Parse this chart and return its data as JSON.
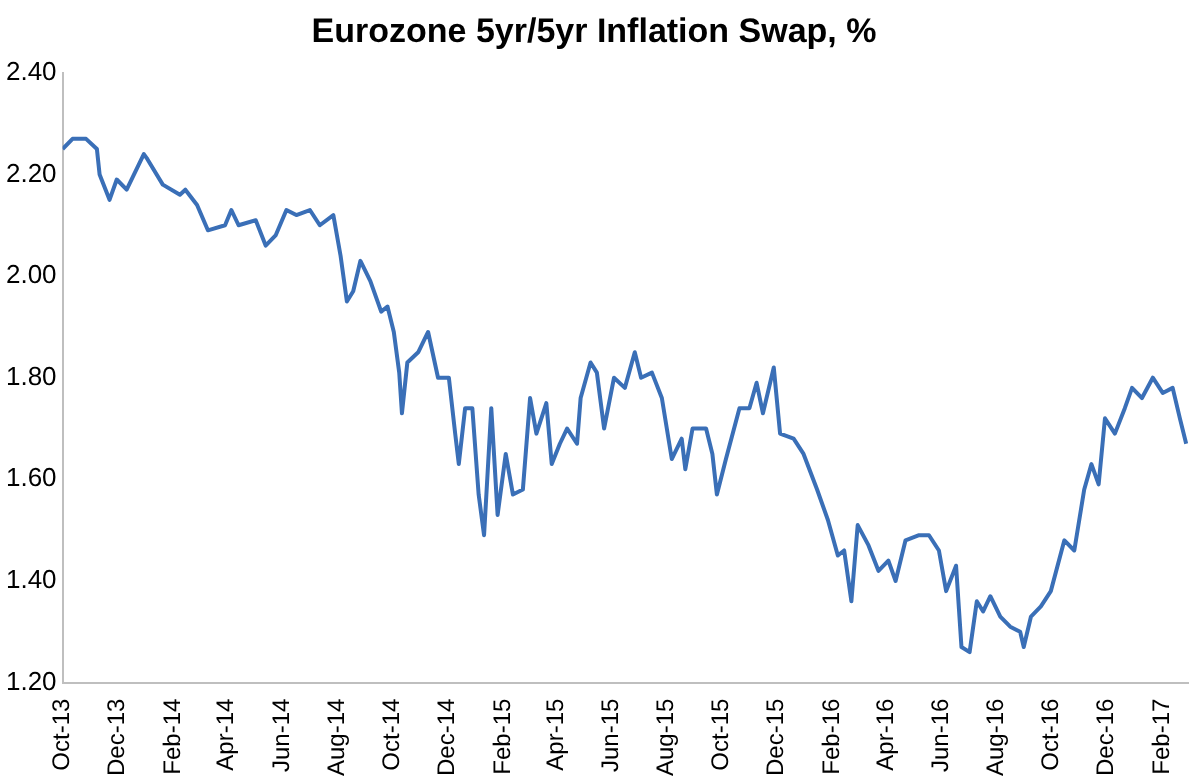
{
  "chart_data": {
    "type": "line",
    "title": "Eurozone 5yr/5yr Inflation Swap, %",
    "x": [
      "2013-10-01",
      "2013-10-12",
      "2013-10-27",
      "2013-11-08",
      "2013-11-11",
      "2013-11-22",
      "2013-11-30",
      "2013-12-11",
      "2013-12-30",
      "2014-01-03",
      "2014-01-20",
      "2014-02-08",
      "2014-02-14",
      "2014-02-27",
      "2014-03-11",
      "2014-03-30",
      "2014-04-06",
      "2014-04-14",
      "2014-05-03",
      "2014-05-14",
      "2014-05-25",
      "2014-06-06",
      "2014-06-17",
      "2014-07-02",
      "2014-07-13",
      "2014-07-28",
      "2014-08-05",
      "2014-08-12",
      "2014-08-19",
      "2014-08-27",
      "2014-09-07",
      "2014-09-19",
      "2014-09-26",
      "2014-10-03",
      "2014-10-09",
      "2014-10-12",
      "2014-10-18",
      "2014-10-30",
      "2014-11-10",
      "2014-11-21",
      "2014-12-03",
      "2014-12-10",
      "2014-12-14",
      "2014-12-21",
      "2014-12-29",
      "2015-01-05",
      "2015-01-11",
      "2015-01-19",
      "2015-01-26",
      "2015-02-04",
      "2015-02-12",
      "2015-02-23",
      "2015-03-03",
      "2015-03-10",
      "2015-03-21",
      "2015-03-27",
      "2015-04-05",
      "2015-04-13",
      "2015-04-24",
      "2015-04-28",
      "2015-05-09",
      "2015-05-16",
      "2015-05-24",
      "2015-06-04",
      "2015-06-16",
      "2015-06-27",
      "2015-07-04",
      "2015-07-16",
      "2015-07-27",
      "2015-08-07",
      "2015-08-18",
      "2015-08-22",
      "2015-08-30",
      "2015-09-14",
      "2015-09-21",
      "2015-09-26",
      "2015-10-06",
      "2015-10-21",
      "2015-11-01",
      "2015-11-09",
      "2015-11-16",
      "2015-11-28",
      "2015-12-05",
      "2015-12-20",
      "2015-12-31",
      "2016-01-15",
      "2016-01-27",
      "2016-02-07",
      "2016-02-14",
      "2016-02-22",
      "2016-02-29",
      "2016-03-12",
      "2016-03-23",
      "2016-04-03",
      "2016-04-11",
      "2016-04-22",
      "2016-05-07",
      "2016-05-18",
      "2016-05-29",
      "2016-06-06",
      "2016-06-17",
      "2016-06-23",
      "2016-07-02",
      "2016-07-10",
      "2016-07-17",
      "2016-07-25",
      "2016-08-05",
      "2016-08-16",
      "2016-08-27",
      "2016-08-31",
      "2016-09-08",
      "2016-09-19",
      "2016-09-30",
      "2016-10-15",
      "2016-10-26",
      "2016-11-06",
      "2016-11-14",
      "2016-11-22",
      "2016-11-29",
      "2016-12-10",
      "2016-12-21",
      "2016-12-29",
      "2017-01-09",
      "2017-01-21",
      "2017-02-01",
      "2017-02-12",
      "2017-02-20",
      "2017-02-27"
    ],
    "series": [
      {
        "color": "#3a6fb7",
        "values": [
          2.25,
          2.27,
          2.27,
          2.25,
          2.2,
          2.15,
          2.19,
          2.17,
          2.24,
          2.23,
          2.18,
          2.16,
          2.17,
          2.14,
          2.09,
          2.1,
          2.13,
          2.1,
          2.11,
          2.06,
          2.08,
          2.13,
          2.12,
          2.13,
          2.1,
          2.12,
          2.04,
          1.95,
          1.97,
          2.03,
          1.99,
          1.93,
          1.94,
          1.89,
          1.81,
          1.73,
          1.83,
          1.85,
          1.89,
          1.8,
          1.8,
          1.69,
          1.63,
          1.74,
          1.74,
          1.57,
          1.49,
          1.74,
          1.53,
          1.65,
          1.57,
          1.58,
          1.76,
          1.69,
          1.75,
          1.63,
          1.67,
          1.7,
          1.67,
          1.76,
          1.83,
          1.81,
          1.7,
          1.8,
          1.78,
          1.85,
          1.8,
          1.81,
          1.76,
          1.64,
          1.68,
          1.62,
          1.7,
          1.7,
          1.65,
          1.57,
          1.64,
          1.74,
          1.74,
          1.79,
          1.73,
          1.82,
          1.69,
          1.68,
          1.65,
          1.58,
          1.52,
          1.45,
          1.46,
          1.36,
          1.51,
          1.47,
          1.42,
          1.44,
          1.4,
          1.48,
          1.49,
          1.49,
          1.46,
          1.38,
          1.43,
          1.27,
          1.26,
          1.36,
          1.34,
          1.37,
          1.33,
          1.31,
          1.3,
          1.27,
          1.33,
          1.35,
          1.38,
          1.48,
          1.46,
          1.58,
          1.63,
          1.59,
          1.72,
          1.69,
          1.74,
          1.78,
          1.76,
          1.8,
          1.77,
          1.78,
          1.72,
          1.67
        ]
      }
    ],
    "xlim": [
      "2013-10-01",
      "2017-03-01"
    ],
    "xticks": [
      {
        "value": "2013-10-01",
        "label": "Oct-13"
      },
      {
        "value": "2013-12-01",
        "label": "Dec-13"
      },
      {
        "value": "2014-02-01",
        "label": "Feb-14"
      },
      {
        "value": "2014-04-01",
        "label": "Apr-14"
      },
      {
        "value": "2014-06-01",
        "label": "Jun-14"
      },
      {
        "value": "2014-08-01",
        "label": "Aug-14"
      },
      {
        "value": "2014-10-01",
        "label": "Oct-14"
      },
      {
        "value": "2014-12-01",
        "label": "Dec-14"
      },
      {
        "value": "2015-02-01",
        "label": "Feb-15"
      },
      {
        "value": "2015-04-01",
        "label": "Apr-15"
      },
      {
        "value": "2015-06-01",
        "label": "Jun-15"
      },
      {
        "value": "2015-08-01",
        "label": "Aug-15"
      },
      {
        "value": "2015-10-01",
        "label": "Oct-15"
      },
      {
        "value": "2015-12-01",
        "label": "Dec-15"
      },
      {
        "value": "2016-02-01",
        "label": "Feb-16"
      },
      {
        "value": "2016-04-01",
        "label": "Apr-16"
      },
      {
        "value": "2016-06-01",
        "label": "Jun-16"
      },
      {
        "value": "2016-08-01",
        "label": "Aug-16"
      },
      {
        "value": "2016-10-01",
        "label": "Oct-16"
      },
      {
        "value": "2016-12-01",
        "label": "Dec-16"
      },
      {
        "value": "2017-02-01",
        "label": "Feb-17"
      }
    ],
    "ylim": [
      1.2,
      2.4
    ],
    "yticks": [
      {
        "value": 1.2,
        "label": "1.20"
      },
      {
        "value": 1.4,
        "label": "1.40"
      },
      {
        "value": 1.6,
        "label": "1.60"
      },
      {
        "value": 1.8,
        "label": "1.80"
      },
      {
        "value": 2.0,
        "label": "2.00"
      },
      {
        "value": 2.2,
        "label": "2.20"
      },
      {
        "value": 2.4,
        "label": "2.40"
      }
    ],
    "grid": false,
    "legend": false,
    "marker": "none",
    "line_style": "solid"
  }
}
